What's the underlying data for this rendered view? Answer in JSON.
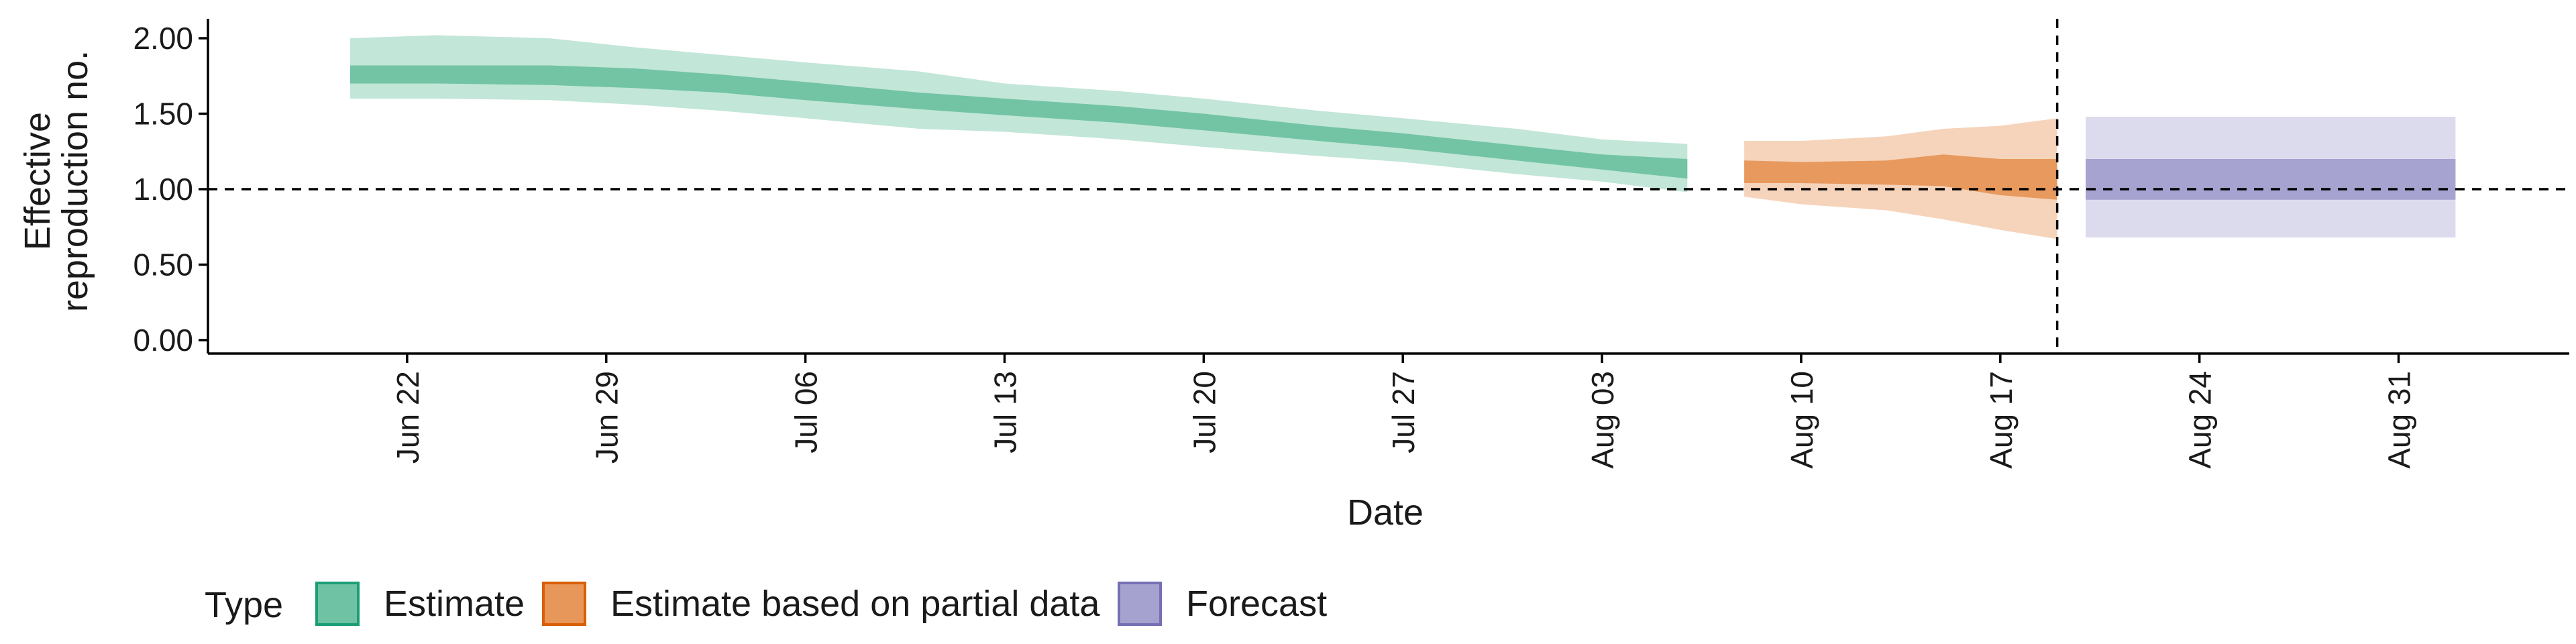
{
  "chart_data": {
    "type": "area",
    "xlabel": "Date",
    "ylabel": [
      "Effective",
      "reproduction no."
    ],
    "ylim": [
      0,
      2
    ],
    "yticks": [
      0,
      0.5,
      1,
      1.5,
      2
    ],
    "ytick_labels": [
      "0.00",
      "0.50",
      "1.00",
      "1.50",
      "2.00"
    ],
    "xrange": [
      "2020-06-15",
      "2020-09-06"
    ],
    "xticks": [
      {
        "date": "2020-06-22",
        "label": "Jun 22"
      },
      {
        "date": "2020-06-29",
        "label": "Jun 29"
      },
      {
        "date": "2020-07-06",
        "label": "Jul 06"
      },
      {
        "date": "2020-07-13",
        "label": "Jul 13"
      },
      {
        "date": "2020-07-20",
        "label": "Jul 20"
      },
      {
        "date": "2020-07-27",
        "label": "Jul 27"
      },
      {
        "date": "2020-08-03",
        "label": "Aug 03"
      },
      {
        "date": "2020-08-10",
        "label": "Aug 10"
      },
      {
        "date": "2020-08-17",
        "label": "Aug 17"
      },
      {
        "date": "2020-08-24",
        "label": "Aug 24"
      },
      {
        "date": "2020-08-31",
        "label": "Aug 31"
      }
    ],
    "reference_line_y": 1.0,
    "vline_date": "2020-08-19",
    "legend": {
      "title": "Type",
      "placement": "bottom-left",
      "entries": [
        {
          "label": "Estimate",
          "fill": "#6fc3a4",
          "stroke": "#1b9e77"
        },
        {
          "label": "Estimate based on partial data",
          "fill": "#e8975a",
          "stroke": "#d95f02"
        },
        {
          "label": "Forecast",
          "fill": "#a6a2d0",
          "stroke": "#7570b3"
        }
      ]
    },
    "series": [
      {
        "name": "Estimate",
        "colors": {
          "inner": "#72c4a5",
          "outer": "#c2e6d7"
        },
        "points": [
          {
            "x": "2020-06-20",
            "lo90": 1.6,
            "lo50": 1.7,
            "hi50": 1.82,
            "hi90": 2.0
          },
          {
            "x": "2020-06-23",
            "lo90": 1.6,
            "lo50": 1.7,
            "hi50": 1.82,
            "hi90": 2.02
          },
          {
            "x": "2020-06-27",
            "lo90": 1.59,
            "lo50": 1.69,
            "hi50": 1.82,
            "hi90": 2.0
          },
          {
            "x": "2020-06-30",
            "lo90": 1.56,
            "lo50": 1.67,
            "hi50": 1.8,
            "hi90": 1.94
          },
          {
            "x": "2020-07-03",
            "lo90": 1.52,
            "lo50": 1.64,
            "hi50": 1.76,
            "hi90": 1.89
          },
          {
            "x": "2020-07-06",
            "lo90": 1.47,
            "lo50": 1.59,
            "hi50": 1.71,
            "hi90": 1.84
          },
          {
            "x": "2020-07-10",
            "lo90": 1.4,
            "lo50": 1.53,
            "hi50": 1.64,
            "hi90": 1.78
          },
          {
            "x": "2020-07-13",
            "lo90": 1.38,
            "lo50": 1.49,
            "hi50": 1.6,
            "hi90": 1.7
          },
          {
            "x": "2020-07-17",
            "lo90": 1.33,
            "lo50": 1.44,
            "hi50": 1.55,
            "hi90": 1.65
          },
          {
            "x": "2020-07-20",
            "lo90": 1.28,
            "lo50": 1.39,
            "hi50": 1.5,
            "hi90": 1.6
          },
          {
            "x": "2020-07-24",
            "lo90": 1.22,
            "lo50": 1.32,
            "hi50": 1.42,
            "hi90": 1.52
          },
          {
            "x": "2020-07-27",
            "lo90": 1.18,
            "lo50": 1.27,
            "hi50": 1.37,
            "hi90": 1.47
          },
          {
            "x": "2020-07-31",
            "lo90": 1.1,
            "lo50": 1.19,
            "hi50": 1.29,
            "hi90": 1.4
          },
          {
            "x": "2020-08-03",
            "lo90": 1.05,
            "lo50": 1.13,
            "hi50": 1.23,
            "hi90": 1.33
          },
          {
            "x": "2020-08-06",
            "lo90": 0.98,
            "lo50": 1.07,
            "hi50": 1.2,
            "hi90": 1.3
          }
        ]
      },
      {
        "name": "Estimate based on partial data",
        "colors": {
          "inner": "#e8995e",
          "outer": "#f6d4bb"
        },
        "points": [
          {
            "x": "2020-08-08",
            "lo90": 0.95,
            "lo50": 1.04,
            "hi50": 1.19,
            "hi90": 1.32
          },
          {
            "x": "2020-08-10",
            "lo90": 0.9,
            "lo50": 1.04,
            "hi50": 1.18,
            "hi90": 1.32
          },
          {
            "x": "2020-08-13",
            "lo90": 0.86,
            "lo50": 1.03,
            "hi50": 1.19,
            "hi90": 1.35
          },
          {
            "x": "2020-08-15",
            "lo90": 0.8,
            "lo50": 1.02,
            "hi50": 1.23,
            "hi90": 1.4
          },
          {
            "x": "2020-08-17",
            "lo90": 0.73,
            "lo50": 0.96,
            "hi50": 1.2,
            "hi90": 1.42
          },
          {
            "x": "2020-08-19",
            "lo90": 0.67,
            "lo50": 0.93,
            "hi50": 1.2,
            "hi90": 1.47
          }
        ]
      },
      {
        "name": "Forecast",
        "colors": {
          "inner": "#a6a3d0",
          "outer": "#dcdbee"
        },
        "points": [
          {
            "x": "2020-08-20",
            "lo90": 0.68,
            "lo50": 0.93,
            "hi50": 1.2,
            "hi90": 1.48
          },
          {
            "x": "2020-09-02",
            "lo90": 0.68,
            "lo50": 0.93,
            "hi50": 1.2,
            "hi90": 1.48
          }
        ]
      }
    ]
  }
}
